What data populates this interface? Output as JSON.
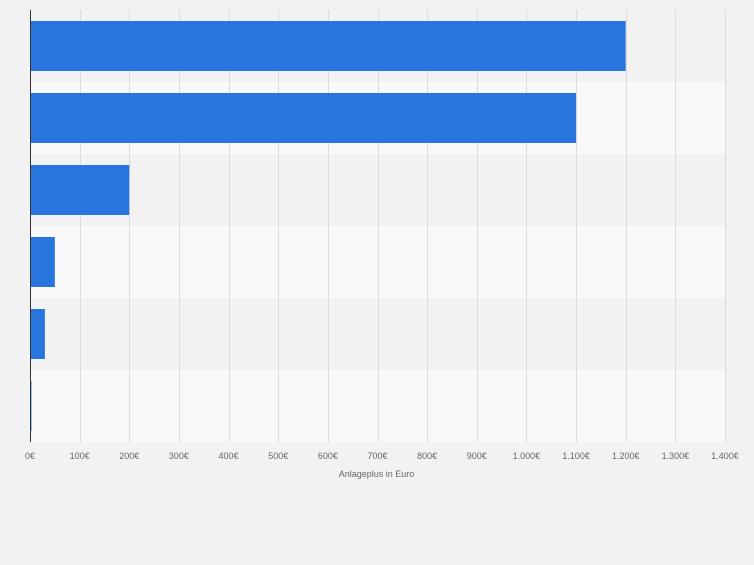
{
  "chart_data": {
    "type": "bar",
    "orientation": "horizontal",
    "categories": [
      "",
      "",
      "",
      "",
      "",
      ""
    ],
    "values": [
      1200,
      1100,
      200,
      50,
      30,
      3
    ],
    "xlabel": "Anlageplus in Euro",
    "ylabel": "",
    "xlim": [
      0,
      1400
    ],
    "xticks": [
      0,
      100,
      200,
      300,
      400,
      500,
      600,
      700,
      800,
      900,
      1000,
      1100,
      1200,
      1300,
      1400
    ],
    "xtick_labels": [
      "0€",
      "100€",
      "200€",
      "300€",
      "400€",
      "500€",
      "600€",
      "700€",
      "800€",
      "900€",
      "1.000€",
      "1.100€",
      "1.200€",
      "1.300€",
      "1.400€"
    ],
    "grid": true,
    "legend": "none"
  },
  "colors": {
    "bar": "#2876dd",
    "background": "#f2f2f2",
    "band_alt": "#f9f9f9",
    "grid": "#dcdcdc",
    "axis": "#333333",
    "text": "#666666"
  }
}
